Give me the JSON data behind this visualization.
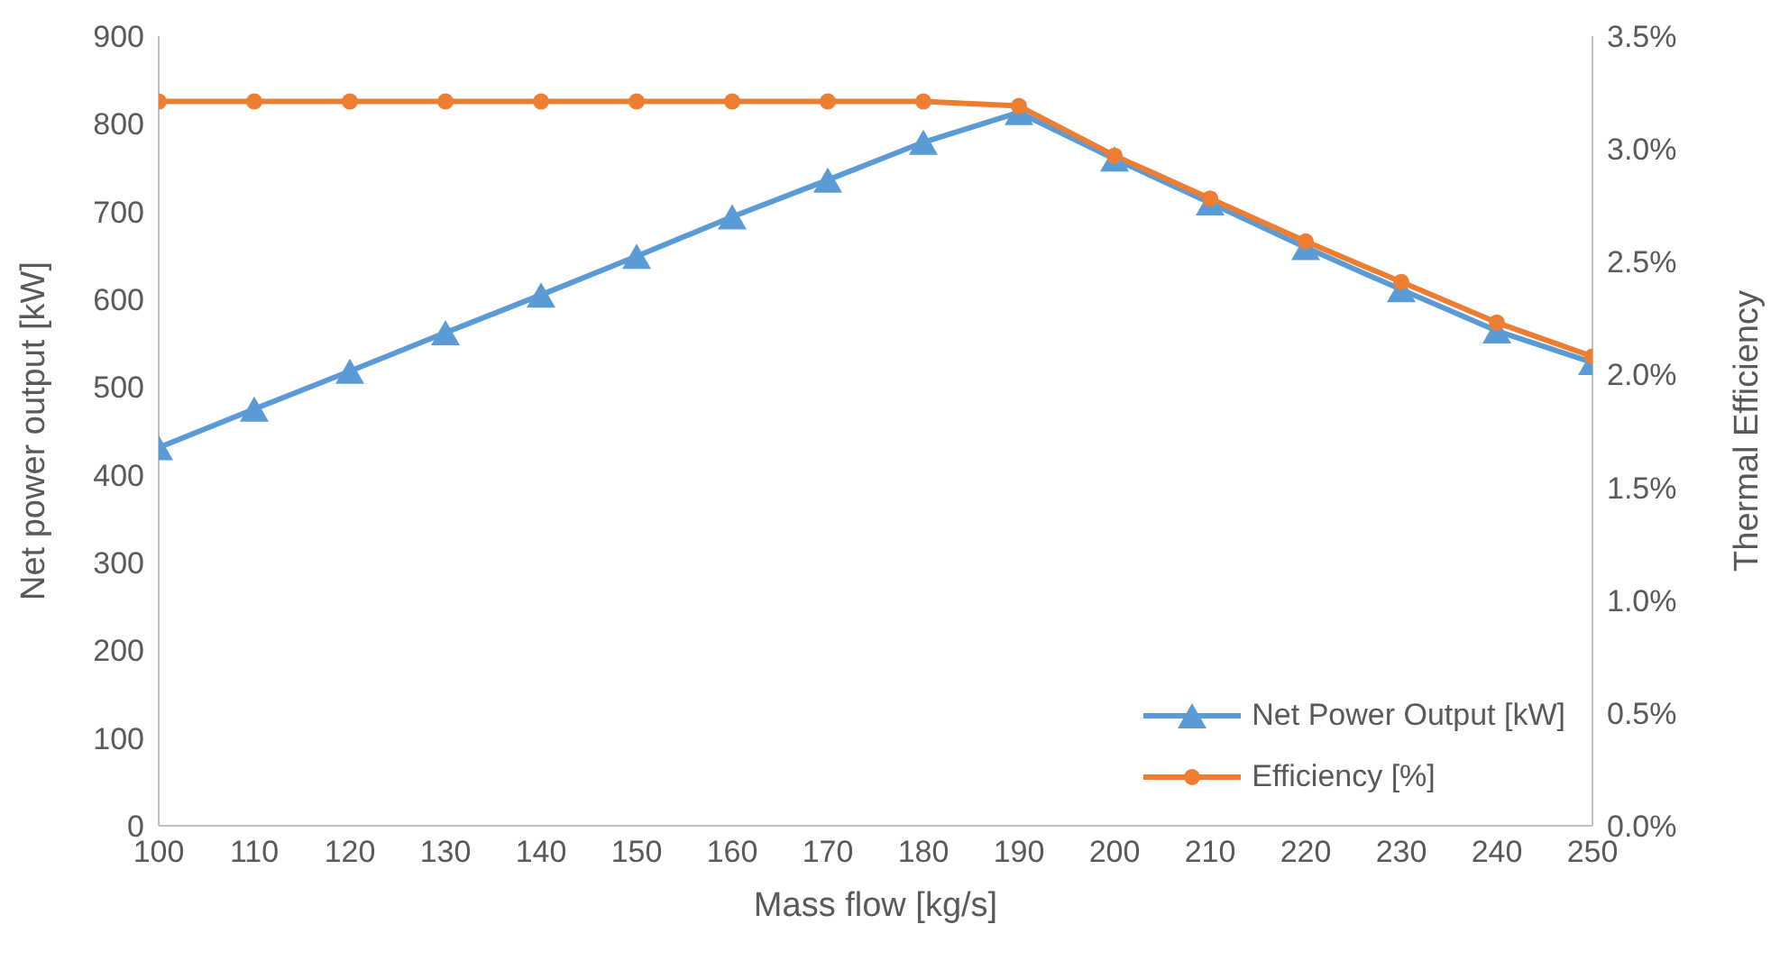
{
  "chart_data": {
    "type": "line",
    "xlabel": "Mass flow [kg/s]",
    "ylabel": "Net power output [kW]",
    "y2label": "Thermal Efficiency",
    "x": [
      100,
      110,
      120,
      130,
      140,
      150,
      160,
      170,
      180,
      190,
      200,
      210,
      220,
      230,
      240,
      250
    ],
    "series": [
      {
        "name": "Net Power Output [kW]",
        "color": "#5b9bd5",
        "marker": "triangle",
        "values": [
          431,
          475,
          518,
          562,
          605,
          649,
          694,
          736,
          779,
          813,
          760,
          710,
          659,
          611,
          564,
          528
        ]
      },
      {
        "name": "Efficiency [%]",
        "color": "#ed7d31",
        "marker": "circle",
        "axis": "y2",
        "values": [
          3.21,
          3.21,
          3.21,
          3.21,
          3.21,
          3.21,
          3.21,
          3.21,
          3.21,
          3.19,
          2.97,
          2.78,
          2.59,
          2.41,
          2.23,
          2.08
        ]
      }
    ],
    "xlim": [
      100,
      250
    ],
    "xticks": [
      100,
      110,
      120,
      130,
      140,
      150,
      160,
      170,
      180,
      190,
      200,
      210,
      220,
      230,
      240,
      250
    ],
    "ylim": [
      0,
      900
    ],
    "yticks": [
      0,
      100,
      200,
      300,
      400,
      500,
      600,
      700,
      800,
      900
    ],
    "y2lim": [
      0,
      3.5
    ],
    "y2ticks": [
      {
        "value": 0,
        "label": "0.0%"
      },
      {
        "value": 0.5,
        "label": "0.5%"
      },
      {
        "value": 1,
        "label": "1.0%"
      },
      {
        "value": 1.5,
        "label": "1.5%"
      },
      {
        "value": 2,
        "label": "2.0%"
      },
      {
        "value": 2.5,
        "label": "2.5%"
      },
      {
        "value": 3,
        "label": "3.0%"
      },
      {
        "value": 3.5,
        "label": "3.5%"
      }
    ],
    "grid": false,
    "legend": "bottom right",
    "line_style": "solid"
  }
}
